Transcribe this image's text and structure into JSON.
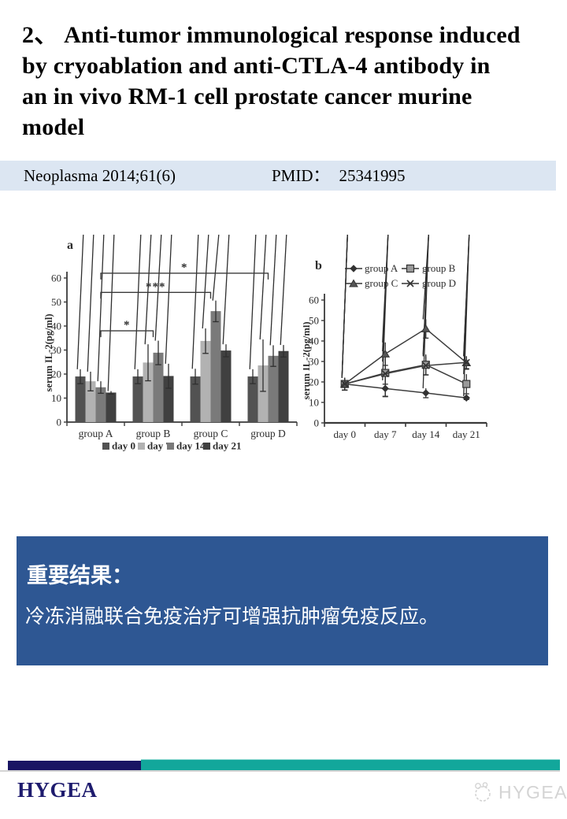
{
  "slide": {
    "title_lines": [
      "2、 Anti-tumor immunological response induced",
      "by cryoablation and anti-CTLA-4 antibody in",
      "an in vivo RM-1 cell prostate cancer murine",
      "model"
    ],
    "citation": {
      "journal": "Neoplasma 2014;61(6)",
      "pmid_label": "PMID：",
      "pmid_value": "25341995"
    }
  },
  "figure": {
    "panel_a_label": "a",
    "panel_b_label": "b"
  },
  "chart_data": [
    {
      "type": "bar",
      "panel": "a",
      "ylabel": "serum IL-2(pg/ml)",
      "ylim": [
        0,
        60
      ],
      "yticks": [
        0,
        10,
        20,
        30,
        40,
        50,
        60
      ],
      "categories": [
        "group A",
        "group B",
        "group C",
        "group D"
      ],
      "series": [
        {
          "name": "day 0",
          "color": "#525252",
          "values": [
            19,
            19,
            19,
            19
          ],
          "errors": [
            3,
            3,
            3.2,
            3
          ]
        },
        {
          "name": "day 7",
          "color": "#b2b2b2",
          "values": [
            17,
            24.8,
            33.8,
            23.6
          ],
          "errors": [
            4,
            7.6,
            5.2,
            10.8
          ]
        },
        {
          "name": "day 14",
          "color": "#7a7a7a",
          "values": [
            14.5,
            28.9,
            46.2,
            27.6
          ],
          "errors": [
            2.5,
            5,
            4.4,
            4.4
          ]
        },
        {
          "name": "day 21",
          "color": "#404040",
          "values": [
            12.3,
            19.2,
            29.8,
            29.6
          ],
          "errors": [
            0.6,
            5.1,
            2.6,
            2.5
          ]
        }
      ],
      "significance": [
        {
          "label": "*",
          "from": "group A",
          "to": "group B",
          "y": 38
        },
        {
          "label": "***",
          "from": "group A",
          "to": "group C",
          "y": 54
        },
        {
          "label": "*",
          "from": "group A",
          "to": "group D",
          "y": 62
        }
      ],
      "legend_position": "bottom",
      "grid": false
    },
    {
      "type": "line",
      "panel": "b",
      "ylabel": "serum IL-2(pg/ml)",
      "ylim": [
        0,
        60
      ],
      "yticks": [
        0,
        10,
        20,
        30,
        40,
        50,
        60
      ],
      "x": [
        "day 0",
        "day 7",
        "day 14",
        "day 21"
      ],
      "series": [
        {
          "name": "group A",
          "marker": "diamond",
          "values": [
            19,
            16.8,
            14.6,
            12.2
          ],
          "errors": [
            3,
            4,
            2.3,
            0.8
          ]
        },
        {
          "name": "group B",
          "marker": "square",
          "values": [
            19,
            24.4,
            28.4,
            19
          ],
          "errors": [
            3,
            5.5,
            5,
            4.8
          ]
        },
        {
          "name": "group C",
          "marker": "triangle",
          "values": [
            19,
            33.7,
            46,
            29.4
          ],
          "errors": [
            3,
            5.6,
            4.6,
            3.2
          ]
        },
        {
          "name": "group D",
          "marker": "x",
          "values": [
            19,
            24,
            28,
            29.5
          ],
          "errors": [
            3,
            11,
            4.5,
            3
          ]
        }
      ],
      "legend_position": "top",
      "grid": false
    }
  ],
  "result_box": {
    "heading": "重要结果：",
    "body": "冷冻消融联合免疫治疗可增强抗肿瘤免疫反应。"
  },
  "footer": {
    "logo_text": "HYGEA",
    "watermark_text": "HYGEA"
  },
  "colors": {
    "citation_bg": "#dce6f2",
    "result_box_bg": "#2e5793",
    "footer_navy": "#191563",
    "footer_teal": "#12a79b",
    "logo_navy": "#1e1b6e",
    "watermark_gray": "#d4d4d4",
    "chart_ink": "#3a3a3a"
  }
}
